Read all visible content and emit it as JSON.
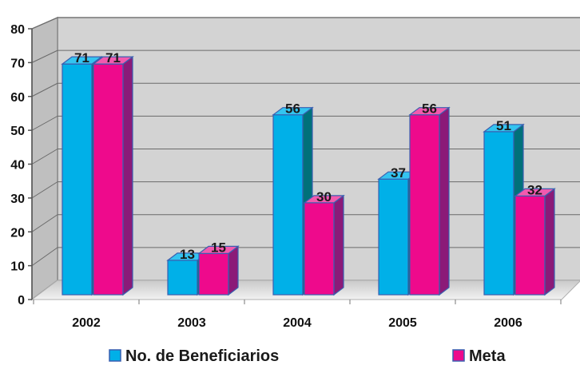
{
  "chart_data": {
    "type": "bar",
    "categories": [
      "2002",
      "2003",
      "2004",
      "2005",
      "2006"
    ],
    "series": [
      {
        "name": "No. de Beneficiarios",
        "values": [
          71,
          13,
          56,
          37,
          51
        ],
        "color": "#00b0e8",
        "side_color": "#00717a",
        "top_color": "#33c4f0"
      },
      {
        "name": "Meta",
        "values": [
          71,
          15,
          30,
          56,
          32
        ],
        "color": "#ee0a8c",
        "side_color": "#8b1a78",
        "top_color": "#f25aae"
      }
    ],
    "y_ticks": [
      "0",
      "10",
      "20",
      "30",
      "40",
      "50",
      "60",
      "70",
      "80"
    ],
    "ylim": [
      0,
      80
    ],
    "grid": true,
    "legend_position": "bottom",
    "wall_color": "#d3d3d3",
    "floor_color": "#d9d9d9",
    "frame_color": "#8a8a8a"
  }
}
